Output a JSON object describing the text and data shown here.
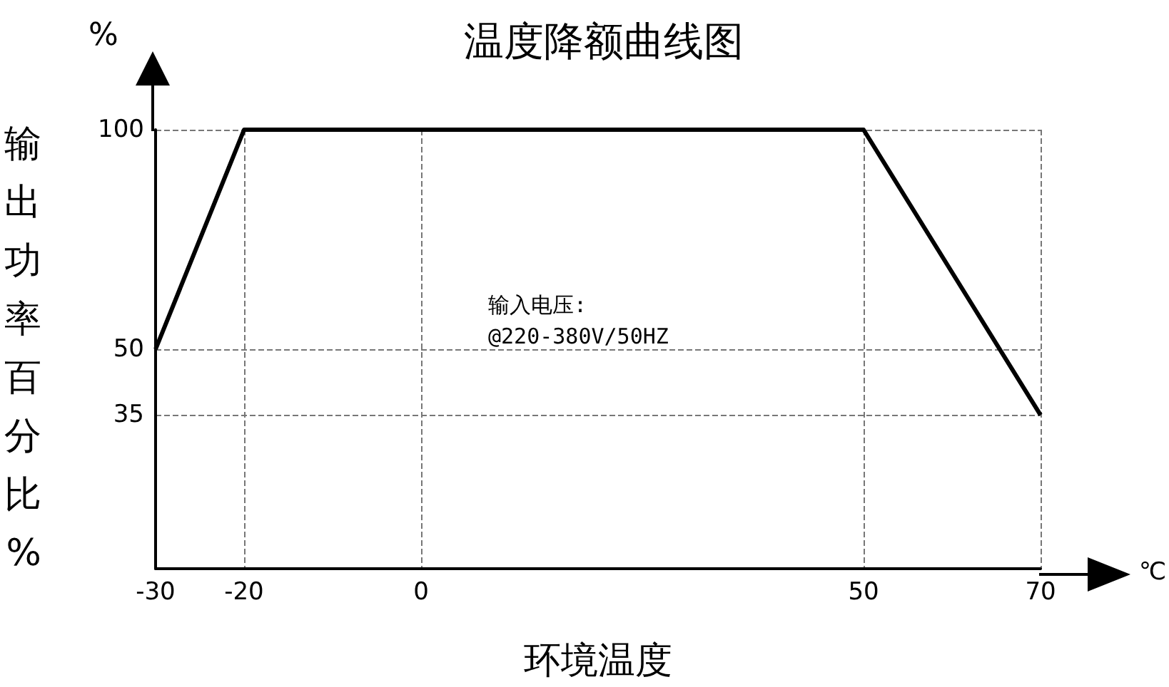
{
  "chart_data": {
    "type": "line",
    "title": "温度降额曲线图",
    "xlabel": "环境温度",
    "ylabel": "输出功率百分比%",
    "x": [
      -30,
      -20,
      50,
      70
    ],
    "values": [
      50,
      100,
      100,
      35
    ],
    "color": "#000000",
    "xlim": [
      -30,
      70
    ],
    "xticks": [
      -30,
      -20,
      0,
      50,
      70
    ],
    "ylim": [
      0,
      100
    ],
    "yticks": [
      35,
      50,
      100
    ],
    "grid": true,
    "marker": "none",
    "line_style": "solid",
    "annotations": [
      "输入电压:\n@220-380V/50HZ",
      "%",
      "℃"
    ]
  }
}
